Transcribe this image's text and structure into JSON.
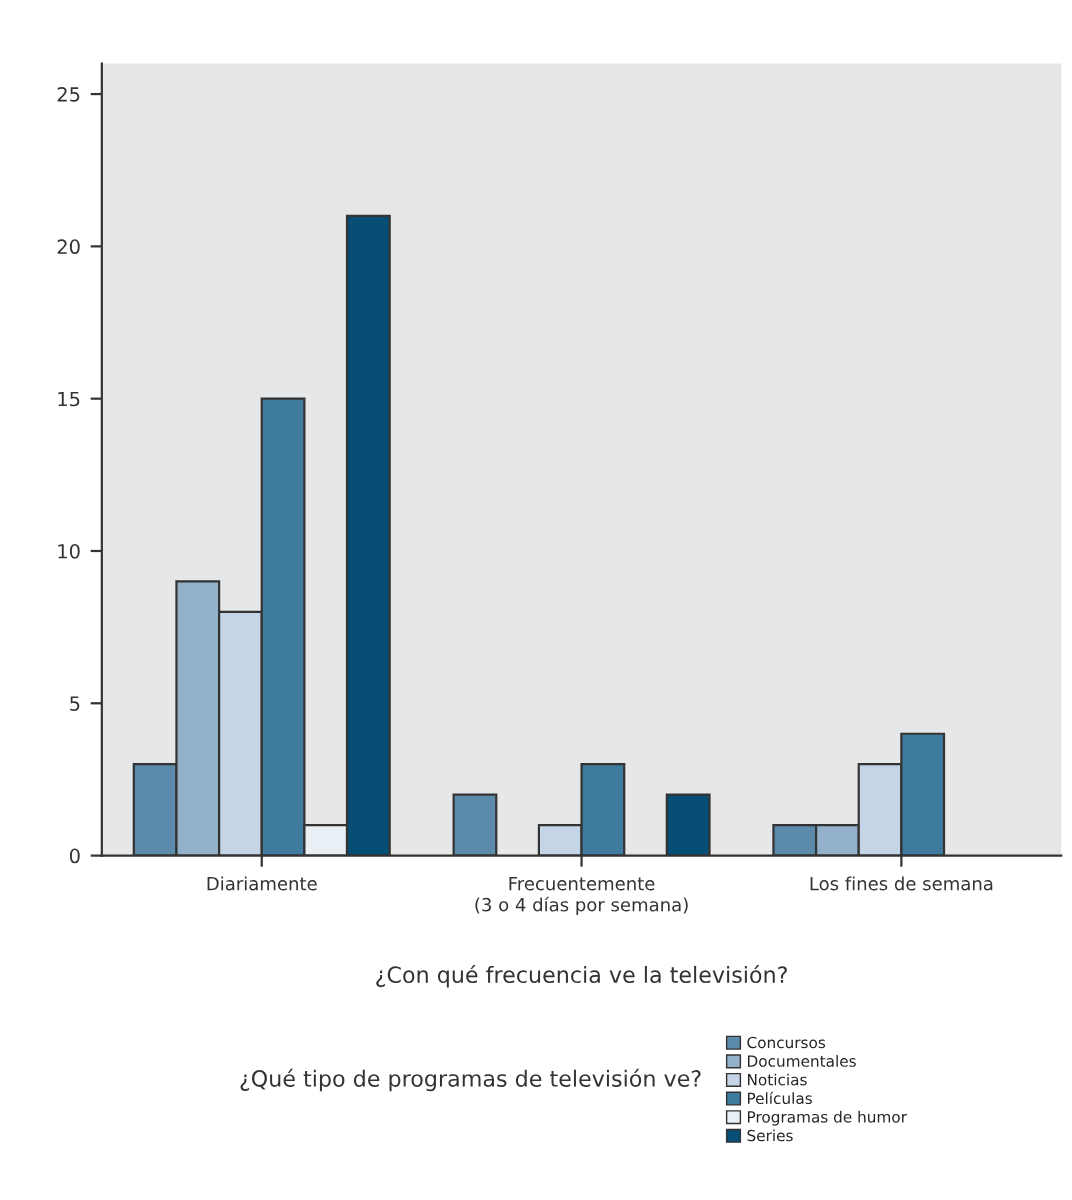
{
  "chart_data": {
    "type": "bar",
    "xlabel": "¿Con qué frecuencia ve la televisión?",
    "legend_title": "¿Qué tipo de programas de televisión ve?",
    "categories": [
      "Diariamente",
      "Frecuentemente\n(3 o 4 días por semana)",
      "Los fines de semana"
    ],
    "series": [
      {
        "name": "Concursos",
        "color": "#5b8aab",
        "values": [
          3,
          2,
          1
        ]
      },
      {
        "name": "Documentales",
        "color": "#93b1cb",
        "values": [
          9,
          null,
          1
        ]
      },
      {
        "name": "Noticias",
        "color": "#c5d5e5",
        "values": [
          8,
          1,
          3
        ]
      },
      {
        "name": "Películas",
        "color": "#3f7a9f",
        "values": [
          15,
          3,
          4
        ]
      },
      {
        "name": "Programas de humor",
        "color": "#e8eff5",
        "values": [
          1,
          null,
          null
        ]
      },
      {
        "name": "Series",
        "color": "#064e76",
        "values": [
          21,
          2,
          null
        ]
      }
    ],
    "ylim": [
      0,
      26
    ],
    "yticks": [
      0,
      5,
      10,
      15,
      20,
      25
    ],
    "grid": false,
    "legend": "bottom right"
  }
}
